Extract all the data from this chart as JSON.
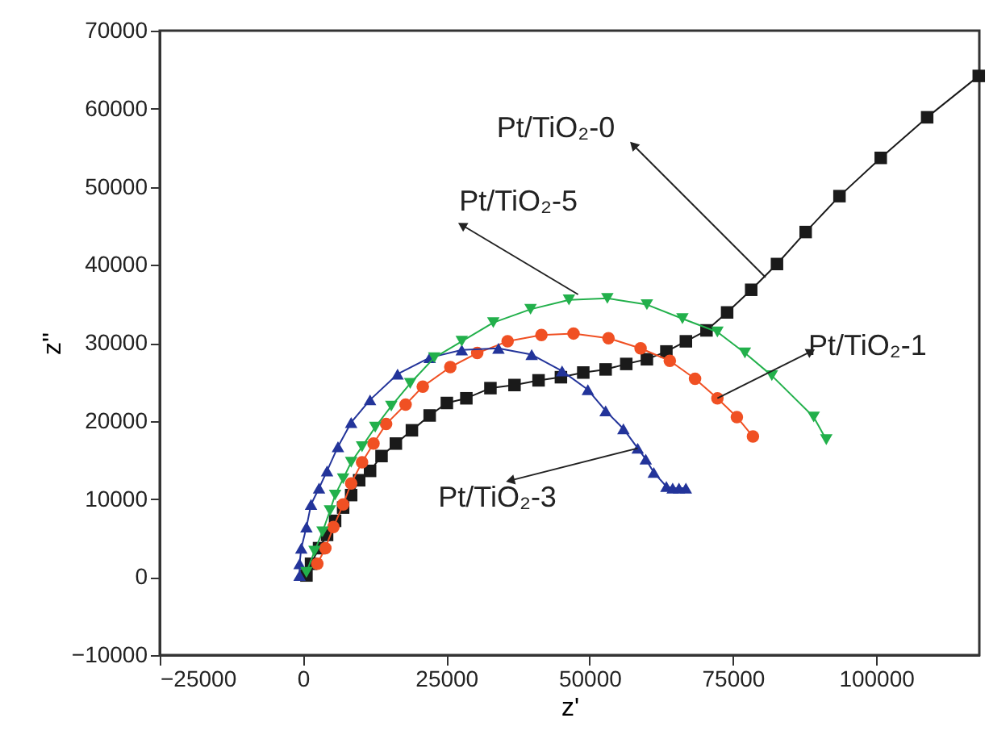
{
  "chart_data": {
    "type": "line",
    "xlabel": "z'",
    "ylabel": "z''",
    "xlim": [
      -25000,
      118000
    ],
    "ylim": [
      -10000,
      70000
    ],
    "xticks": [
      -25000,
      0,
      25000,
      50000,
      75000,
      100000
    ],
    "yticks": [
      -10000,
      0,
      10000,
      20000,
      30000,
      40000,
      50000,
      60000,
      70000
    ],
    "grid": false,
    "line_style": "solid",
    "series": [
      {
        "color": "#1a1a1a",
        "marker": "square",
        "x": [
          600,
          1400,
          2800,
          4200,
          5600,
          7000,
          8400,
          9800,
          11700,
          13700,
          16200,
          19000,
          22100,
          25100,
          28500,
          32700,
          36900,
          41100,
          45000,
          48900,
          52800,
          56400,
          60000,
          63400,
          66800,
          70400,
          74000,
          78200,
          82700,
          87700,
          93600,
          100800,
          108900,
          117900
        ],
        "values": [
          200,
          1700,
          3700,
          5400,
          7200,
          8900,
          10500,
          12400,
          13600,
          15500,
          17100,
          18800,
          20700,
          22300,
          22900,
          24200,
          24600,
          25200,
          25600,
          26200,
          26600,
          27300,
          27900,
          28900,
          30200,
          31600,
          33900,
          36800,
          40100,
          44200,
          48800,
          53700,
          58900,
          64200
        ]
      },
      {
        "color": "#f05023",
        "marker": "circle",
        "x": [
          2500,
          3900,
          5300,
          7000,
          8400,
          10300,
          12300,
          14500,
          17900,
          20900,
          25700,
          30400,
          35700,
          41600,
          47200,
          53300,
          58900,
          64000,
          68400,
          72300,
          75700,
          78500
        ],
        "values": [
          1700,
          3700,
          6400,
          9300,
          12000,
          14700,
          17100,
          19600,
          22100,
          24400,
          26900,
          28700,
          30200,
          31000,
          31200,
          30600,
          29300,
          27700,
          25400,
          22900,
          20500,
          18000
        ]
      },
      {
        "color": "#23349a",
        "marker": "triangle",
        "x": [
          -600,
          -600,
          -300,
          600,
          1400,
          2800,
          4200,
          6100,
          8400,
          11700,
          16500,
          22100,
          27700,
          34100,
          39900,
          45200,
          49700,
          52800,
          55900,
          58400,
          59800,
          61200,
          63400,
          64500,
          65600,
          66800
        ],
        "values": [
          200,
          1700,
          3700,
          6400,
          9300,
          11400,
          13600,
          16700,
          19800,
          22700,
          26000,
          28100,
          29100,
          29300,
          28500,
          26400,
          24000,
          21300,
          19000,
          16500,
          15100,
          13400,
          11600,
          11400,
          11400,
          11400
        ]
      },
      {
        "color": "#22b04b",
        "marker": "triangle-down",
        "x": [
          600,
          2000,
          3400,
          4700,
          5600,
          7000,
          8400,
          10300,
          12600,
          15400,
          18700,
          22900,
          27700,
          33200,
          39700,
          46400,
          53100,
          60000,
          66200,
          72300,
          77100,
          81800,
          89100,
          91300
        ],
        "values": [
          600,
          3300,
          5800,
          8500,
          10500,
          12600,
          14700,
          16700,
          19200,
          21900,
          24800,
          28100,
          30200,
          32600,
          34300,
          35500,
          35700,
          34900,
          33100,
          31400,
          28700,
          25800,
          20500,
          17600
        ]
      }
    ],
    "annotations": [
      {
        "text": "Pt/TiO₂-0",
        "x": 80700,
        "y": 38400
      },
      {
        "text": "Pt/TiO₂-5",
        "x": 48000,
        "y": 36200
      },
      {
        "text": "Pt/TiO₂-1",
        "x": 72300,
        "y": 22900
      },
      {
        "text": "Pt/TiO₂-3",
        "x": 58400,
        "y": 16500
      }
    ]
  }
}
